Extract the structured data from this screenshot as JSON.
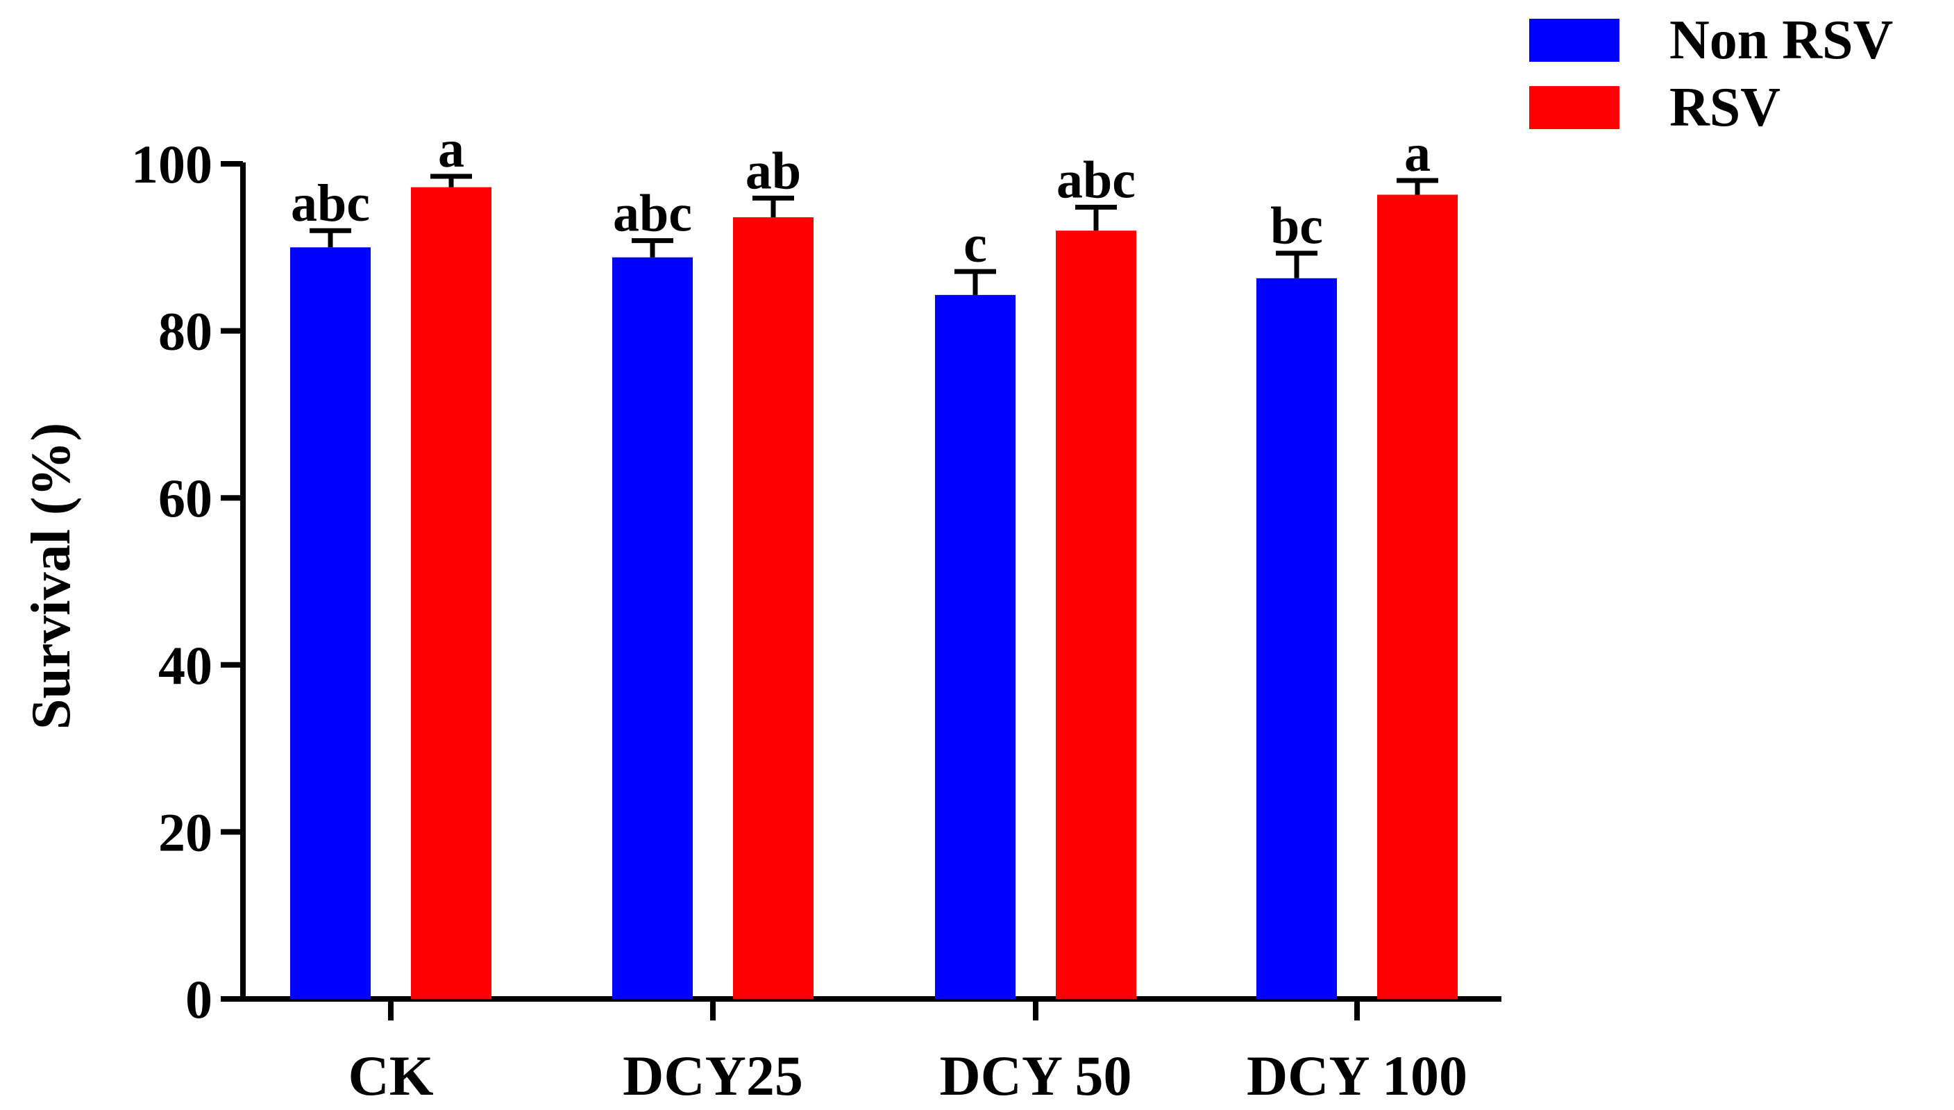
{
  "chart_data": {
    "type": "bar",
    "title": "",
    "xlabel": "",
    "ylabel": "Survival (%)",
    "ylim": [
      0,
      100
    ],
    "yticks": [
      "0",
      "20",
      "40",
      "60",
      "80",
      "100"
    ],
    "grid": false,
    "legend_position": "top-right",
    "categories": [
      "CK",
      "DCY25",
      "DCY 50",
      "DCY 100"
    ],
    "series": [
      {
        "name": "Non RSV",
        "color": "#0000ff",
        "values": [
          90.0,
          88.8,
          84.3,
          86.3
        ],
        "errors": [
          2.0,
          2.0,
          2.8,
          3.0
        ],
        "letters": [
          "abc",
          "abc",
          "c",
          "bc"
        ]
      },
      {
        "name": "RSV",
        "color": "#ff0000",
        "values": [
          97.2,
          93.6,
          92.0,
          96.3
        ],
        "errors": [
          1.3,
          2.3,
          2.8,
          1.7
        ],
        "letters": [
          "a",
          "ab",
          "abc",
          "a"
        ]
      }
    ]
  }
}
